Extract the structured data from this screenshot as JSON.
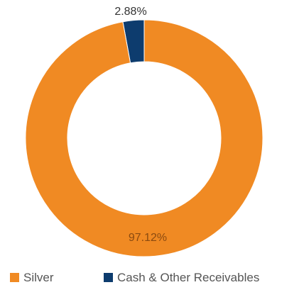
{
  "chart_data": {
    "type": "pie",
    "donut": true,
    "title": "",
    "slices": [
      {
        "label": "Cash & Other Receivables",
        "value": 2.88,
        "display": "2.88%",
        "color": "#0d3c6e"
      },
      {
        "label": "Silver",
        "value": 97.12,
        "display": "97.12%",
        "color": "#f08a23"
      }
    ],
    "legend": {
      "placement": "bottom",
      "entries": [
        {
          "label": "Silver",
          "color": "#f08a23"
        },
        {
          "label": "Cash & Other Receivables",
          "color": "#0d3c6e"
        }
      ]
    }
  }
}
